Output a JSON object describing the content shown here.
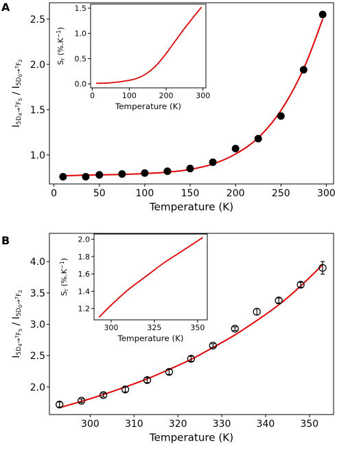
{
  "panels": [
    {
      "letter": "A",
      "ylabel": "I5D4→7F5 / I5D0→7F2",
      "ylabel_parts": {
        "I1": "I",
        "s1": "5",
        "D1": "D",
        "d1": "4",
        "a1": "→",
        "s2": "7",
        "F1": "F",
        "d2": "5",
        "slash": " / ",
        "I2": "I",
        "s3": "5",
        "D2": "D",
        "d3": "0",
        "a2": "→",
        "s4": "7",
        "F2": "F",
        "d4": "2"
      },
      "inset_ylabel": "Sr (%.K⁻¹)",
      "inset_ylabel_parts": {
        "S": "S",
        "r": "r",
        "unit": " (%.K",
        "exp": "−1",
        "close": ")"
      }
    },
    {
      "letter": "B",
      "ylabel": "I5D4→7F5 / I5D0→7F2",
      "ylabel_parts": {
        "I1": "I",
        "s1": "5",
        "D1": "D",
        "d1": "4",
        "a1": "→",
        "s2": "7",
        "F1": "F",
        "d2": "5",
        "slash": " / ",
        "I2": "I",
        "s3": "5",
        "D2": "D",
        "d3": "0",
        "a2": "→",
        "s4": "7",
        "F2": "F",
        "d4": "2"
      },
      "inset_ylabel": "Sr (%.K⁻¹)",
      "inset_ylabel_parts": {
        "S": "S",
        "r": "r",
        "unit": " (%.K",
        "exp": "−1",
        "close": ")"
      }
    }
  ],
  "chart_data": [
    {
      "type": "scatter",
      "panel": "A",
      "xlabel": "Temperature (K)",
      "xlim": [
        -5,
        308
      ],
      "ylim": [
        0.68,
        2.68
      ],
      "xticks": [
        0,
        50,
        100,
        150,
        200,
        250,
        300
      ],
      "yticks": [
        1.0,
        1.5,
        2.0,
        2.5
      ],
      "ytick_labels": [
        "1.0",
        "1.5",
        "2.0",
        "2.5"
      ],
      "marker": "filled-circle",
      "marker_color": "#000000",
      "line_color": "#e00000",
      "points": {
        "x": [
          10,
          35,
          50,
          75,
          100,
          125,
          150,
          175,
          200,
          225,
          250,
          275,
          296
        ],
        "y": [
          0.76,
          0.76,
          0.78,
          0.79,
          0.8,
          0.82,
          0.85,
          0.92,
          1.07,
          1.18,
          1.43,
          1.94,
          2.55
        ]
      },
      "fit_curve": {
        "x": [
          10,
          25,
          50,
          75,
          100,
          125,
          150,
          175,
          200,
          225,
          250,
          275,
          296
        ],
        "y": [
          0.77,
          0.775,
          0.78,
          0.785,
          0.795,
          0.81,
          0.84,
          0.9,
          1.01,
          1.19,
          1.49,
          1.95,
          2.5
        ]
      },
      "inset": {
        "type": "line",
        "xlabel": "Temperature (K)",
        "xlim": [
          -5,
          308
        ],
        "ylim": [
          -0.08,
          1.58
        ],
        "xticks": [
          0,
          100,
          200,
          300
        ],
        "yticks": [
          0.0,
          0.5,
          1.0,
          1.5
        ],
        "ytick_labels": [
          "0.0",
          "0.5",
          "1.0",
          "1.5"
        ],
        "line_color": "#e00000",
        "x": [
          10,
          50,
          100,
          125,
          150,
          175,
          200,
          225,
          250,
          275,
          296
        ],
        "y": [
          0.01,
          0.02,
          0.07,
          0.12,
          0.22,
          0.38,
          0.6,
          0.85,
          1.1,
          1.33,
          1.52
        ]
      }
    },
    {
      "type": "scatter",
      "panel": "B",
      "xlabel": "Temperature (K)",
      "xlim": [
        290.7,
        355.5
      ],
      "ylim": [
        1.56,
        4.45
      ],
      "xticks": [
        300,
        310,
        320,
        330,
        340,
        350
      ],
      "yticks": [
        2.0,
        2.5,
        3.0,
        3.5,
        4.0
      ],
      "ytick_labels": [
        "2.0",
        "2.5",
        "3.0",
        "3.5",
        "4.0"
      ],
      "marker": "open-circle-with-errorbar",
      "marker_color": "#000000",
      "line_color": "#e00000",
      "points": {
        "x": [
          293,
          298,
          303,
          308,
          313,
          318,
          323,
          328,
          333,
          338,
          343,
          348,
          353
        ],
        "y": [
          1.72,
          1.78,
          1.87,
          1.96,
          2.11,
          2.24,
          2.45,
          2.66,
          2.93,
          3.2,
          3.38,
          3.63,
          3.9
        ],
        "yerr": [
          0.04,
          0.03,
          0.03,
          0.04,
          0.04,
          0.04,
          0.04,
          0.03,
          0.03,
          0.05,
          0.04,
          0.04,
          0.1
        ]
      },
      "fit_curve": {
        "x": [
          293,
          298,
          303,
          308,
          313,
          318,
          323,
          328,
          333,
          338,
          343,
          348,
          353
        ],
        "y": [
          1.67,
          1.77,
          1.88,
          2.0,
          2.13,
          2.28,
          2.44,
          2.63,
          2.83,
          3.06,
          3.31,
          3.61,
          3.95
        ]
      },
      "inset": {
        "type": "line",
        "xlabel": "Temperature (K)",
        "xlim": [
          290.1,
          355.6
        ],
        "ylim": [
          1.07,
          2.06
        ],
        "xticks": [
          300,
          325,
          350
        ],
        "yticks": [
          1.2,
          1.4,
          1.6,
          1.8,
          2.0
        ],
        "ytick_labels": [
          "1.2",
          "1.4",
          "1.6",
          "1.8",
          "2.0"
        ],
        "line_color": "#e00000",
        "x": [
          293,
          300,
          310,
          320,
          330,
          340,
          353
        ],
        "y": [
          1.1,
          1.24,
          1.42,
          1.57,
          1.72,
          1.85,
          2.02
        ]
      }
    }
  ]
}
